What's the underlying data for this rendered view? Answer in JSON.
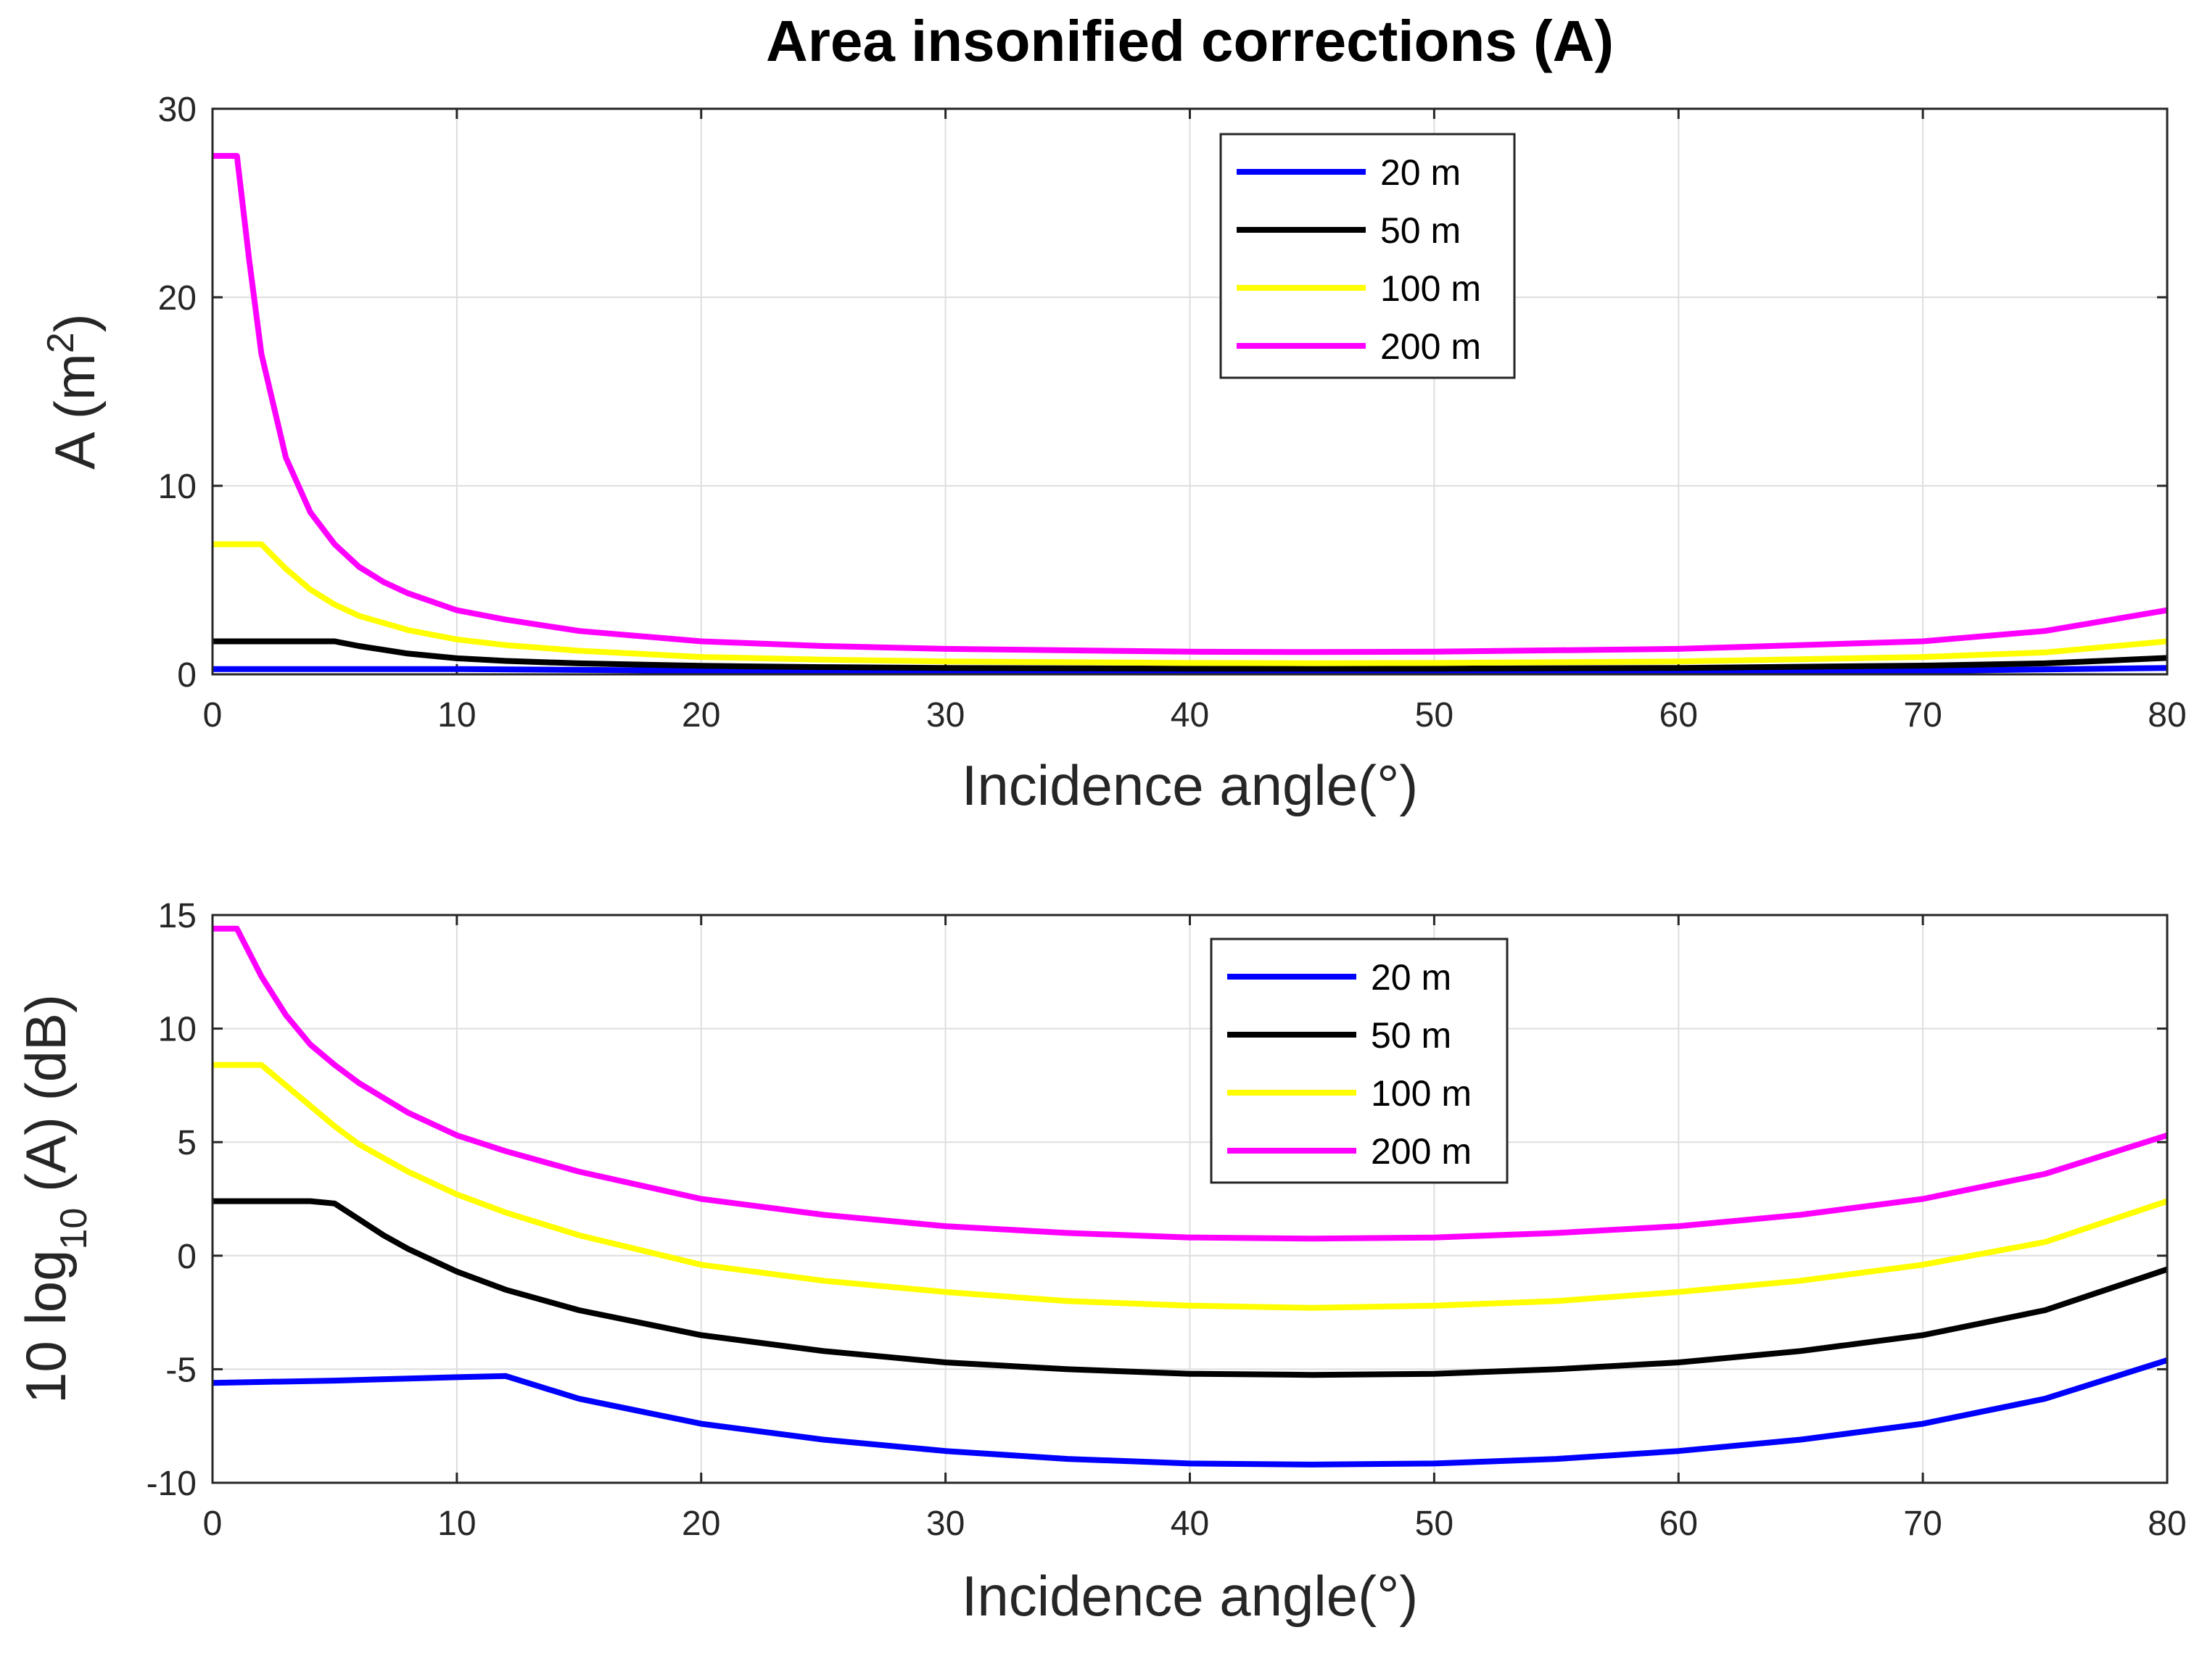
{
  "chart_data": [
    {
      "type": "line",
      "title": "Area insonified corrections (A)",
      "xlabel": "Incidence angle(°)",
      "ylabel": "A (m",
      "ylabel_sup": "2",
      "ylabel_end": ")",
      "xlim": [
        0,
        80
      ],
      "ylim": [
        0,
        30
      ],
      "xticks": [
        "0",
        "10",
        "20",
        "30",
        "40",
        "50",
        "60",
        "70",
        "80"
      ],
      "yticks": [
        "0",
        "10",
        "20",
        "30"
      ],
      "grid": true,
      "legend_position": "top-center",
      "legend": [
        "20 m",
        "50 m",
        "100 m",
        "200 m"
      ],
      "series": [
        {
          "name": "20 m",
          "color": "#0000ff",
          "x": [
            0,
            10,
            20,
            30,
            40,
            45,
            50,
            60,
            70,
            80
          ],
          "y": [
            0.28,
            0.28,
            0.19,
            0.14,
            0.12,
            0.12,
            0.12,
            0.14,
            0.18,
            0.34
          ]
        },
        {
          "name": "50 m",
          "color": "#000000",
          "x": [
            0,
            5,
            6,
            7,
            8,
            10,
            12,
            15,
            20,
            25,
            30,
            40,
            45,
            50,
            60,
            70,
            75,
            80
          ],
          "y": [
            1.75,
            1.75,
            1.5,
            1.3,
            1.1,
            0.85,
            0.71,
            0.58,
            0.45,
            0.38,
            0.34,
            0.3,
            0.3,
            0.3,
            0.34,
            0.46,
            0.58,
            0.87
          ]
        },
        {
          "name": "100 m",
          "color": "#ffff00",
          "x": [
            0,
            2,
            3,
            4,
            5,
            6,
            8,
            10,
            12,
            15,
            20,
            25,
            30,
            40,
            45,
            50,
            60,
            70,
            75,
            80
          ],
          "y": [
            6.9,
            6.9,
            5.6,
            4.5,
            3.7,
            3.1,
            2.35,
            1.85,
            1.55,
            1.25,
            0.92,
            0.78,
            0.68,
            0.6,
            0.59,
            0.6,
            0.68,
            0.92,
            1.16,
            1.75
          ]
        },
        {
          "name": "200 m",
          "color": "#ff00ff",
          "x": [
            0,
            1,
            1.5,
            2,
            3,
            4,
            5,
            6,
            7,
            8,
            10,
            12,
            15,
            20,
            25,
            30,
            40,
            45,
            50,
            60,
            70,
            75,
            80
          ],
          "y": [
            27.5,
            27.5,
            22,
            17,
            11.5,
            8.6,
            6.9,
            5.7,
            4.9,
            4.3,
            3.4,
            2.9,
            2.3,
            1.75,
            1.5,
            1.35,
            1.2,
            1.18,
            1.2,
            1.35,
            1.75,
            2.3,
            3.4
          ]
        }
      ]
    },
    {
      "type": "line",
      "title": "",
      "xlabel": "Incidence angle(°)",
      "ylabel": "10 log",
      "ylabel_sub": "10",
      "ylabel_end": "(A) (dB)",
      "xlim": [
        0,
        80
      ],
      "ylim": [
        -10,
        15
      ],
      "xticks": [
        "0",
        "10",
        "20",
        "30",
        "40",
        "50",
        "60",
        "70",
        "80"
      ],
      "yticks": [
        "-10",
        "-5",
        "0",
        "5",
        "10",
        "15"
      ],
      "grid": true,
      "legend_position": "top-center",
      "legend": [
        "20 m",
        "50 m",
        "100 m",
        "200 m"
      ],
      "series": [
        {
          "name": "20 m",
          "color": "#0000ff",
          "x": [
            0,
            5,
            10,
            12,
            15,
            20,
            25,
            30,
            35,
            40,
            45,
            50,
            55,
            60,
            65,
            70,
            75,
            80
          ],
          "y": [
            -5.6,
            -5.5,
            -5.35,
            -5.3,
            -6.3,
            -7.4,
            -8.1,
            -8.6,
            -8.95,
            -9.15,
            -9.2,
            -9.15,
            -8.95,
            -8.6,
            -8.1,
            -7.4,
            -6.3,
            -4.6
          ]
        },
        {
          "name": "50 m",
          "color": "#000000",
          "x": [
            0,
            4,
            5,
            6,
            7,
            8,
            10,
            12,
            15,
            20,
            25,
            30,
            35,
            40,
            45,
            50,
            55,
            60,
            65,
            70,
            75,
            80
          ],
          "y": [
            2.4,
            2.4,
            2.3,
            1.6,
            0.9,
            0.3,
            -0.7,
            -1.5,
            -2.4,
            -3.5,
            -4.2,
            -4.7,
            -5.0,
            -5.2,
            -5.25,
            -5.2,
            -5.0,
            -4.7,
            -4.2,
            -3.5,
            -2.4,
            -0.6
          ]
        },
        {
          "name": "100 m",
          "color": "#ffff00",
          "x": [
            0,
            2,
            3,
            4,
            5,
            6,
            8,
            10,
            12,
            15,
            20,
            25,
            30,
            35,
            40,
            45,
            50,
            55,
            60,
            65,
            70,
            75,
            80
          ],
          "y": [
            8.4,
            8.4,
            7.5,
            6.6,
            5.7,
            4.9,
            3.7,
            2.7,
            1.9,
            0.9,
            -0.4,
            -1.1,
            -1.6,
            -2.0,
            -2.2,
            -2.3,
            -2.2,
            -2.0,
            -1.6,
            -1.1,
            -0.4,
            0.6,
            2.4
          ]
        },
        {
          "name": "200 m",
          "color": "#ff00ff",
          "x": [
            0,
            1,
            2,
            3,
            4,
            5,
            6,
            8,
            10,
            12,
            15,
            20,
            25,
            30,
            35,
            40,
            45,
            50,
            55,
            60,
            65,
            70,
            75,
            80
          ],
          "y": [
            14.4,
            14.4,
            12.3,
            10.6,
            9.3,
            8.4,
            7.6,
            6.3,
            5.3,
            4.6,
            3.7,
            2.5,
            1.8,
            1.3,
            1.0,
            0.8,
            0.75,
            0.8,
            1.0,
            1.3,
            1.8,
            2.5,
            3.6,
            5.3
          ]
        }
      ]
    }
  ]
}
